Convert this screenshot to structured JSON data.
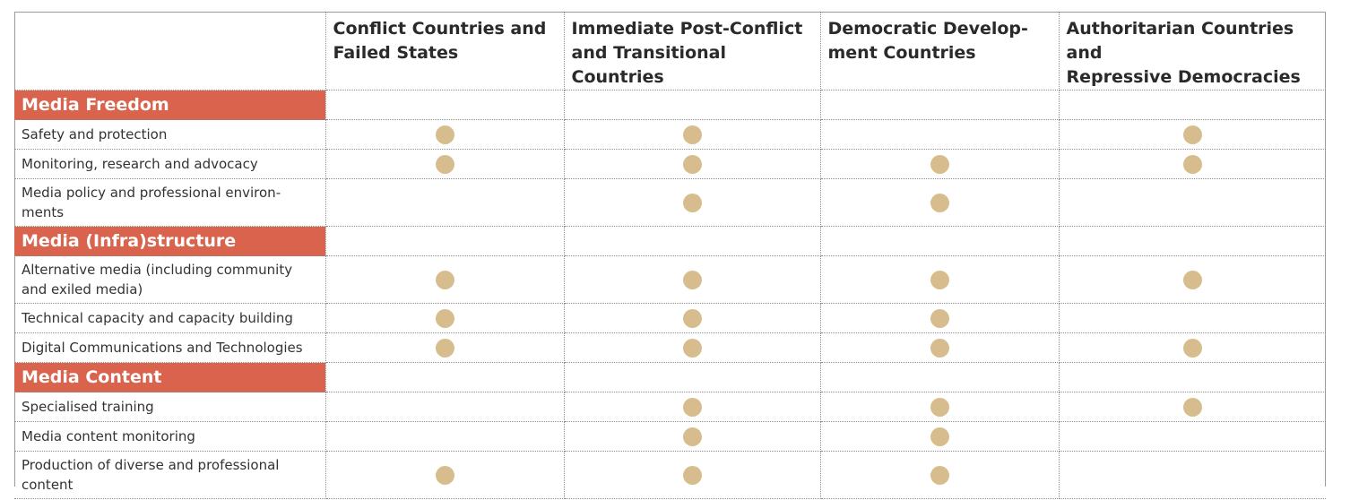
{
  "columns": [
    "Conflict Countries and Failed States",
    "Immediate Post-Conflict and Transitional Countries",
    "Democratic Develop-ment Countries",
    "Authoritarian Countries and Repressive Democracies"
  ],
  "column_lines": [
    [
      "Conflict Countries and",
      "Failed States"
    ],
    [
      "Immediate Post-Conflict",
      "and Transitional Countries"
    ],
    [
      "Democratic Develop-",
      "ment Countries"
    ],
    [
      "Authoritarian Countries and",
      "Repressive Democracies"
    ]
  ],
  "sections": [
    {
      "title": "Media Freedom",
      "items": [
        {
          "label": "Safety and protection",
          "marks": [
            true,
            true,
            false,
            true
          ]
        },
        {
          "label": "Monitoring, research and advocacy",
          "marks": [
            true,
            true,
            true,
            true
          ]
        },
        {
          "label": "Media policy and professional environ-ments",
          "marks": [
            false,
            true,
            true,
            false
          ]
        }
      ]
    },
    {
      "title": "Media (Infra)structure",
      "items": [
        {
          "label": "Alternative media (including community and exiled media)",
          "marks": [
            true,
            true,
            true,
            true
          ]
        },
        {
          "label": "Technical capacity and capacity building",
          "marks": [
            true,
            true,
            true,
            false
          ]
        },
        {
          "label": "Digital Communications and Technologies",
          "marks": [
            true,
            true,
            true,
            true
          ]
        }
      ]
    },
    {
      "title": "Media Content",
      "items": [
        {
          "label": "Specialised training",
          "marks": [
            false,
            true,
            true,
            true
          ]
        },
        {
          "label": "Media content monitoring",
          "marks": [
            false,
            true,
            true,
            false
          ]
        },
        {
          "label": "Production of diverse and professional content",
          "marks": [
            true,
            true,
            true,
            false
          ]
        }
      ]
    }
  ],
  "colors": {
    "section_fill": "#d9634c",
    "dot_fill": "#d7bd8d"
  },
  "icons": {
    "mark": "filled-circle-icon"
  }
}
